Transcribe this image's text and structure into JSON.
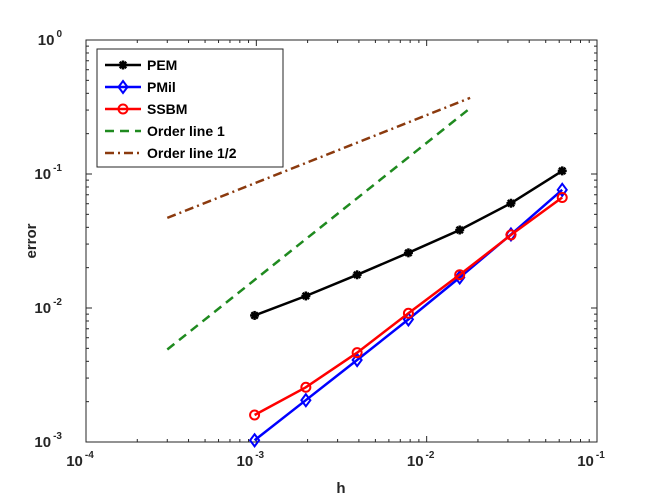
{
  "chart_data": {
    "type": "line",
    "scale": "loglog",
    "xlabel": "h",
    "ylabel": "error",
    "xlim_exp": [
      -4,
      -1
    ],
    "ylim_exp": [
      -3,
      0
    ],
    "x_ticks": [
      {
        "base": "10",
        "exp": "-4",
        "value": 0.0001
      },
      {
        "base": "10",
        "exp": "-3",
        "value": 0.001
      },
      {
        "base": "10",
        "exp": "-2",
        "value": 0.01
      },
      {
        "base": "10",
        "exp": "-1",
        "value": 0.1
      }
    ],
    "y_ticks": [
      {
        "base": "10",
        "exp": "-3",
        "value": 0.001
      },
      {
        "base": "10",
        "exp": "-2",
        "value": 0.01
      },
      {
        "base": "10",
        "exp": "-1",
        "value": 0.1
      },
      {
        "base": "10",
        "exp": "0",
        "value": 1
      }
    ],
    "series": [
      {
        "name": "PEM",
        "color": "#000000",
        "marker": "asterisk",
        "dash": "solid",
        "x": [
          0.0009766,
          0.001953,
          0.003906,
          0.007813,
          0.01563,
          0.03125,
          0.0625
        ],
        "y": [
          0.0088,
          0.0123,
          0.0177,
          0.0258,
          0.0382,
          0.0605,
          0.1055
        ]
      },
      {
        "name": "PMil",
        "color": "#0000ff",
        "marker": "diamond",
        "dash": "solid",
        "x": [
          0.0009766,
          0.001953,
          0.003906,
          0.007813,
          0.01563,
          0.03125,
          0.0625
        ],
        "y": [
          0.00103,
          0.00205,
          0.00409,
          0.00822,
          0.0169,
          0.0354,
          0.0762
        ]
      },
      {
        "name": "SSBM",
        "color": "#ff0000",
        "marker": "circle",
        "dash": "solid",
        "x": [
          0.0009766,
          0.001953,
          0.003906,
          0.007813,
          0.01563,
          0.03125,
          0.0625
        ],
        "y": [
          0.00159,
          0.00256,
          0.00464,
          0.00913,
          0.0177,
          0.0351,
          0.0668
        ]
      },
      {
        "name": "Order line 1",
        "color": "#1f8a1f",
        "marker": "none",
        "dash": "dashed",
        "x": [
          0.0003,
          0.018
        ],
        "y": [
          0.0049,
          0.31
        ]
      },
      {
        "name": "Order line 1/2",
        "color": "#8b3a0e",
        "marker": "none",
        "dash": "dashdot",
        "x": [
          0.0003,
          0.018
        ],
        "y": [
          0.047,
          0.37
        ]
      }
    ],
    "legend": {
      "position": "top-left"
    }
  }
}
